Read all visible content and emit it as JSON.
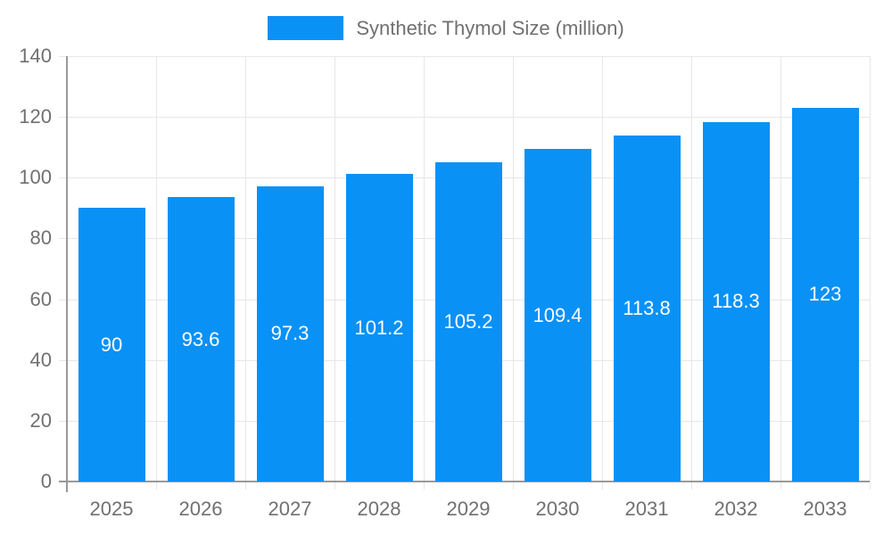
{
  "legend": {
    "label": "Synthetic Thymol Size (million)"
  },
  "chart_data": {
    "type": "bar",
    "title": "Synthetic Thymol Size (million)",
    "categories": [
      "2025",
      "2026",
      "2027",
      "2028",
      "2029",
      "2030",
      "2031",
      "2032",
      "2033"
    ],
    "values": [
      90,
      93.6,
      97.3,
      101.2,
      105.2,
      109.4,
      113.8,
      118.3,
      123
    ],
    "value_labels": [
      "90",
      "93.6",
      "97.3",
      "101.2",
      "105.2",
      "109.4",
      "113.8",
      "118.3",
      "123"
    ],
    "xlabel": "",
    "ylabel": "",
    "ylim": [
      0,
      140
    ],
    "ytick_step": 20,
    "ytick_labels": [
      "0",
      "20",
      "40",
      "60",
      "80",
      "100",
      "120",
      "140"
    ],
    "grid": true,
    "legend_position": "top",
    "colors": {
      "bar": "#0991f6",
      "value_label": "#ffffff",
      "axis_text": "#707070",
      "gridline": "#e7e7e7",
      "axis_line": "#999999"
    }
  }
}
